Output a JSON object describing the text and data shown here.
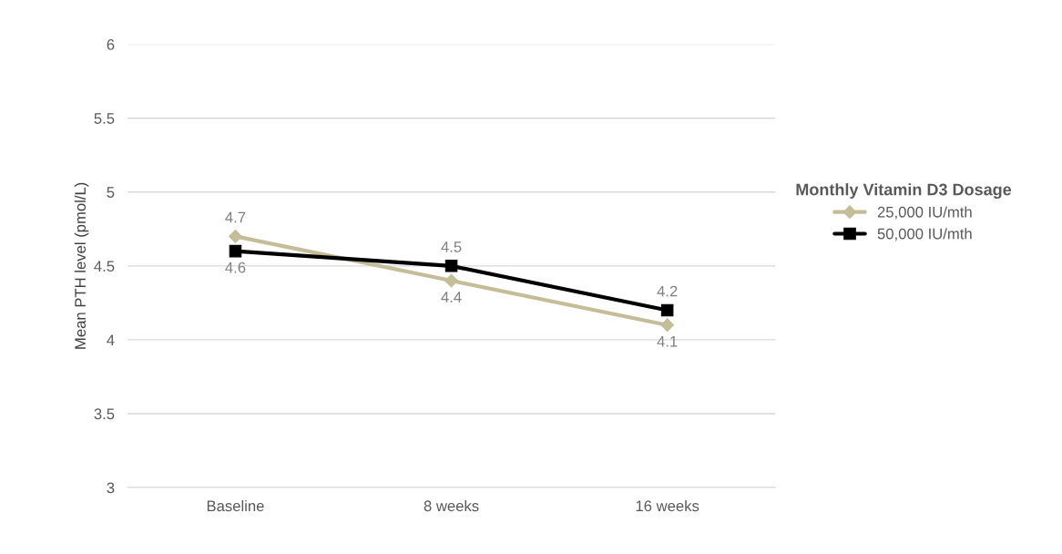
{
  "chart_data": {
    "type": "line",
    "ylabel": "Mean PTH level (pmol/L)",
    "legend_title": "Monthly Vitamin D3 Dosage",
    "categories": [
      "Baseline",
      "8 weeks",
      "16 weeks"
    ],
    "series": [
      {
        "name": "25,000 IU/mth",
        "color": "#c4bd97",
        "marker": "diamond",
        "values": [
          4.7,
          4.4,
          4.1
        ]
      },
      {
        "name": "50,000 IU/mth",
        "color": "#000000",
        "marker": "square",
        "values": [
          4.6,
          4.5,
          4.2
        ]
      }
    ],
    "ylim": [
      3,
      6
    ],
    "yticks": [
      3,
      3.5,
      4,
      4.5,
      5,
      5.5,
      6
    ],
    "grid": "y",
    "legend": "right",
    "data_labels": true
  }
}
